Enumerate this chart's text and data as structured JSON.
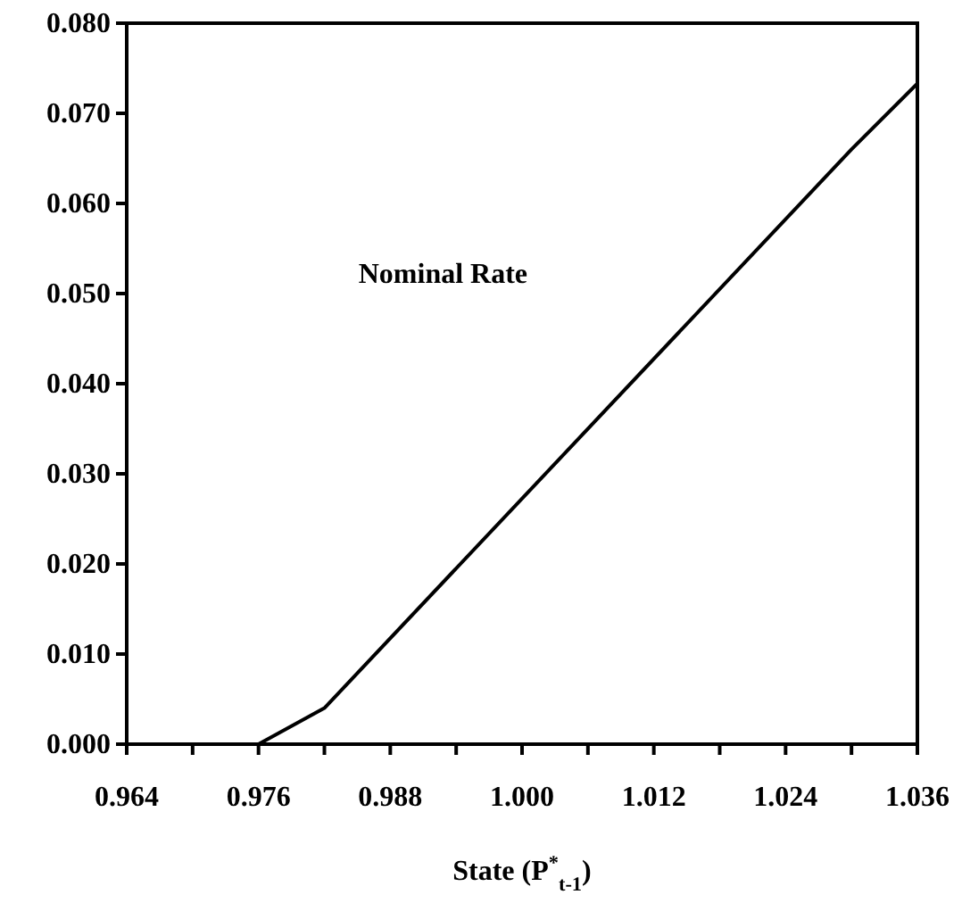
{
  "chart_data": {
    "type": "line",
    "xlabel": "State (P$^{*}$$_{t-1}$)",
    "x": [
      0.964,
      0.976,
      0.982,
      1.03,
      1.036
    ],
    "series": [
      {
        "name": "Nominal Rate",
        "color": "#000000",
        "values": [
          0,
          0,
          0.004,
          0.066,
          0.0733
        ]
      }
    ],
    "xlim": [
      0.964,
      1.036
    ],
    "xticks": [
      0.964,
      {
        "value": 0.97,
        "label": null
      },
      0.976,
      {
        "value": 0.982,
        "label": null
      },
      0.988,
      {
        "value": 0.994,
        "label": null
      },
      {
        "value": 1.0,
        "label": "1.000"
      },
      {
        "value": 1.006,
        "label": null
      },
      1.012,
      {
        "value": 1.018,
        "label": null
      },
      1.024,
      {
        "value": 1.03,
        "label": null
      },
      1.036
    ],
    "ylim": [
      0,
      0.08
    ],
    "yticks": [
      {
        "value": 0,
        "label": "0.000"
      },
      {
        "value": 0.01,
        "label": "0.010"
      },
      {
        "value": 0.02,
        "label": "0.020"
      },
      {
        "value": 0.03,
        "label": "0.030"
      },
      {
        "value": 0.04,
        "label": "0.040"
      },
      {
        "value": 0.05,
        "label": "0.050"
      },
      {
        "value": 0.06,
        "label": "0.060"
      },
      {
        "value": 0.07,
        "label": "0.070"
      },
      {
        "value": 0.08,
        "label": "0.080"
      }
    ],
    "grid": false,
    "legend": false,
    "marker": "none",
    "line_style": "solid"
  }
}
